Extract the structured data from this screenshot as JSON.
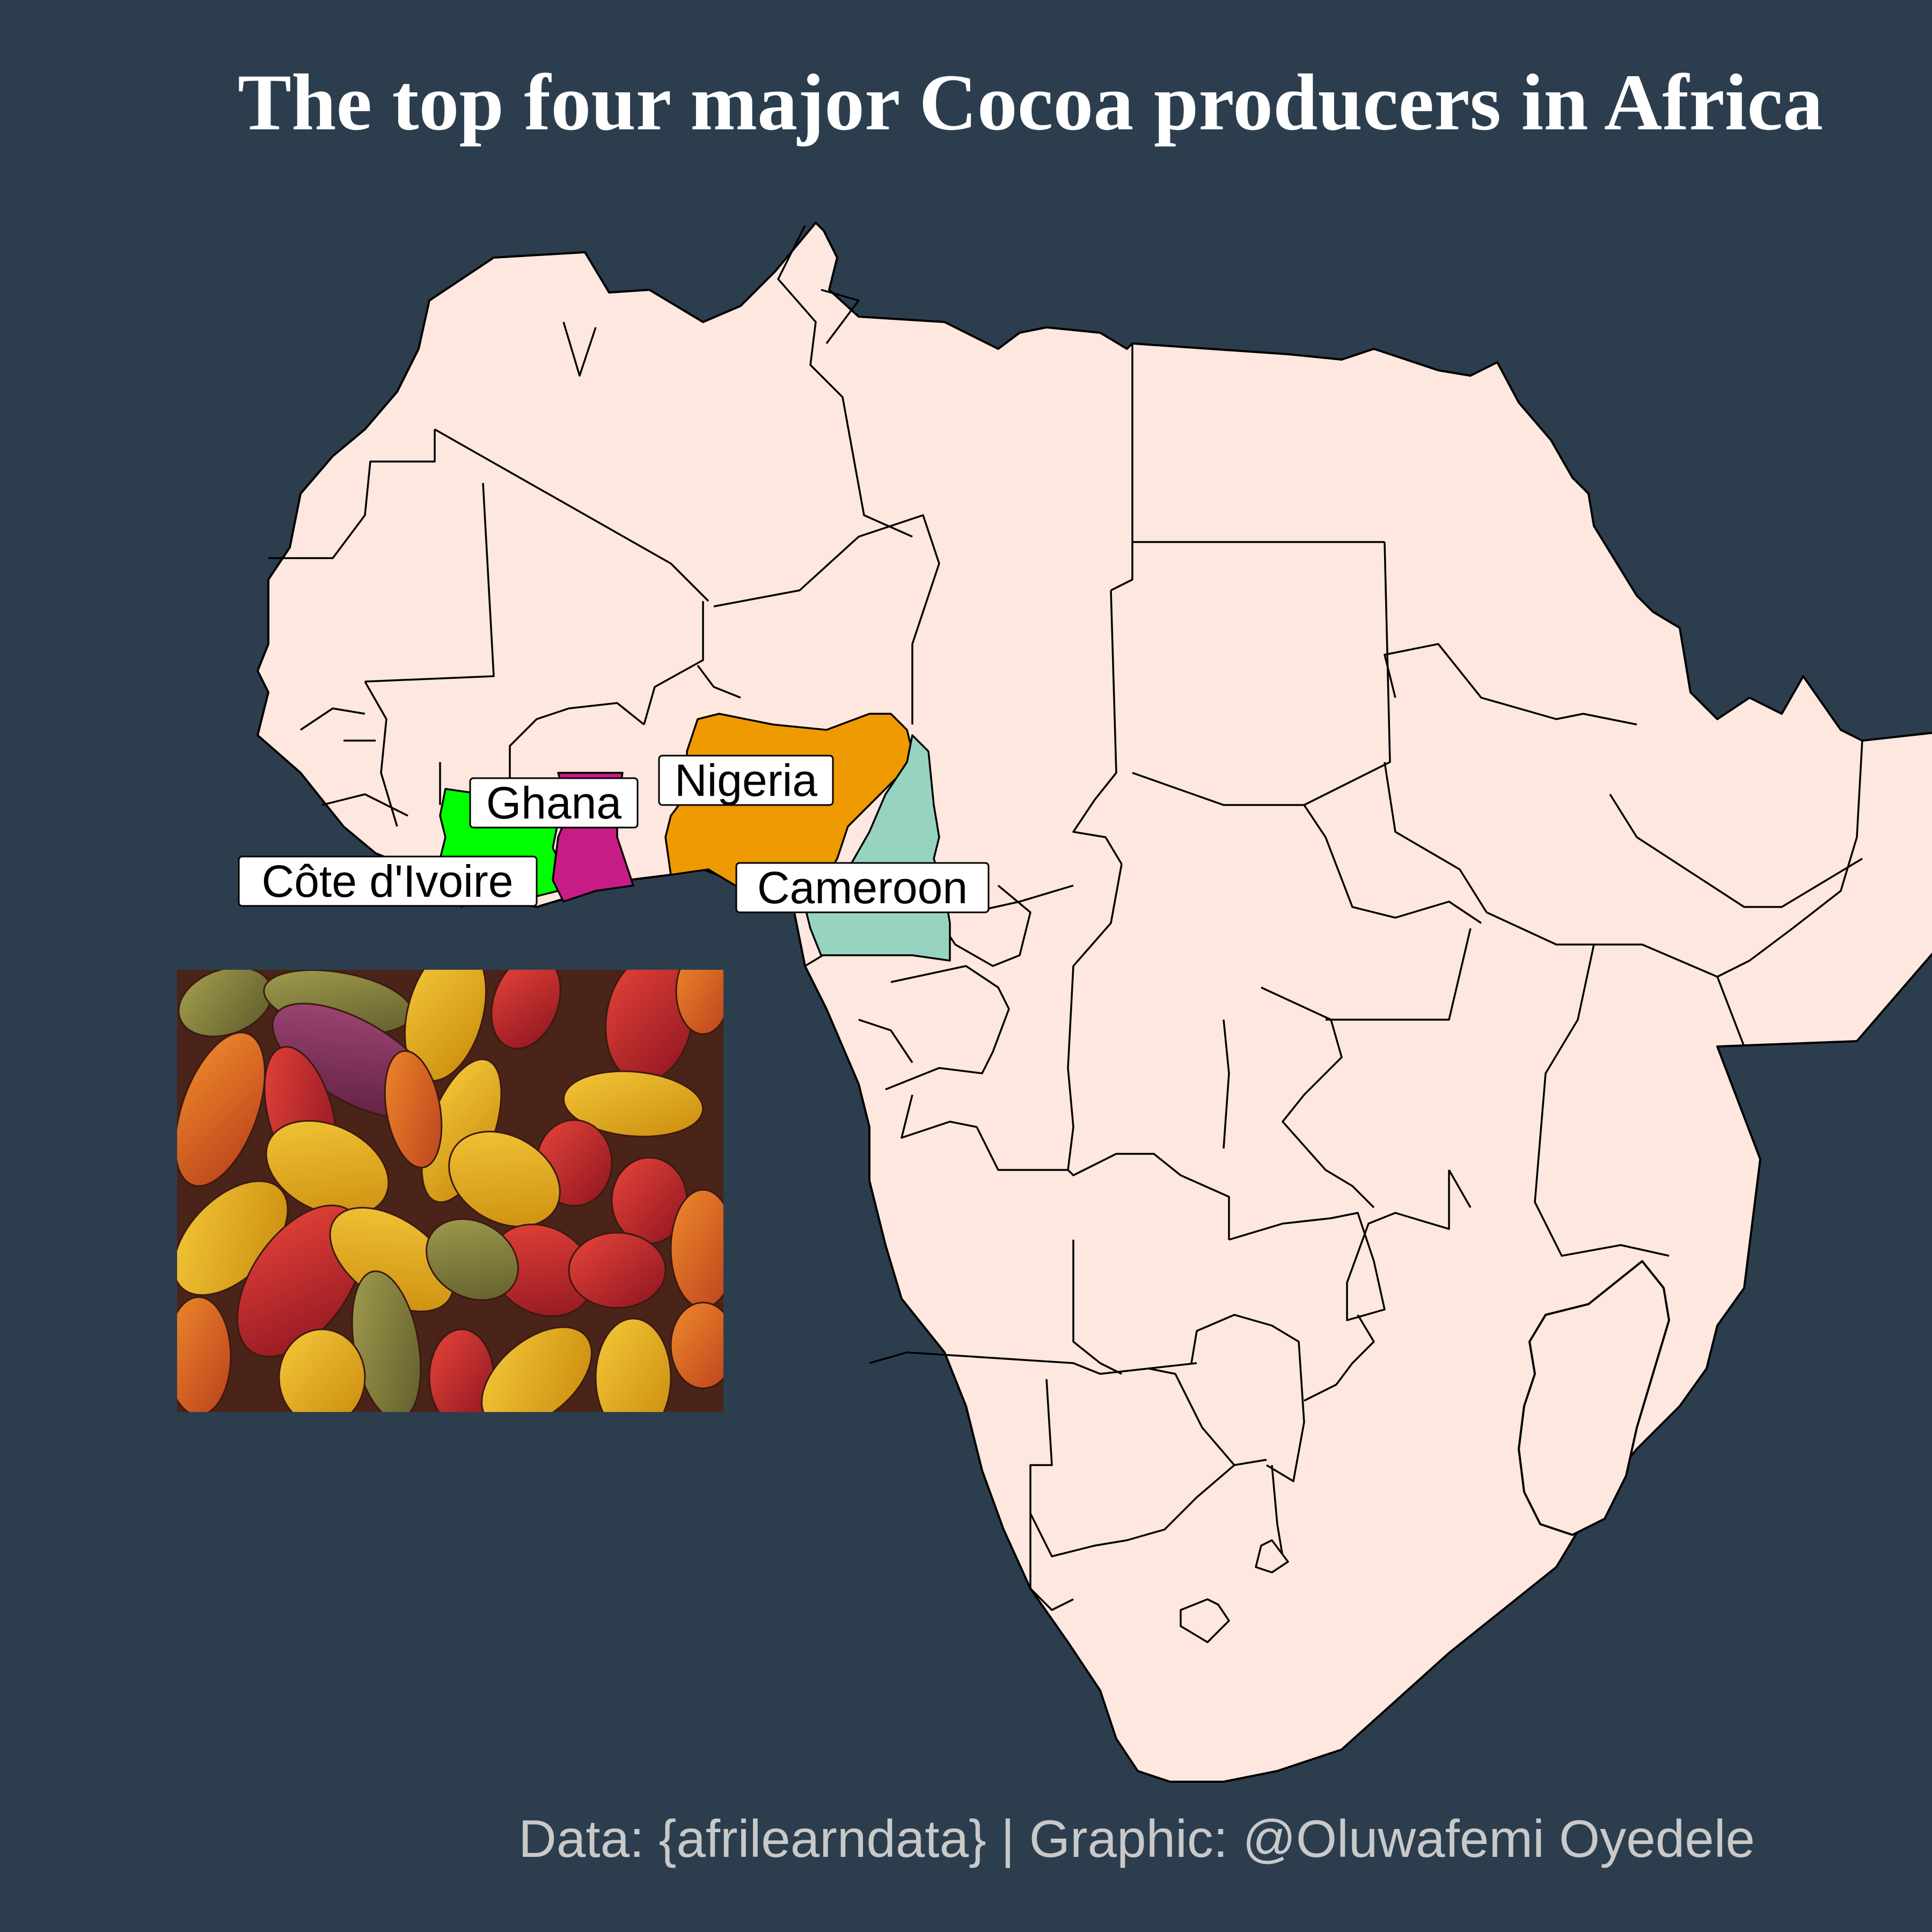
{
  "title": "The top four major Cocoa producers in Africa",
  "caption": "Data: {afrilearndata} | Graphic: @Oluwafemi Oyedele",
  "map": {
    "background_color": "#2c3e4e",
    "base_fill": "#fde7de",
    "border_color": "#000000",
    "highlighted_countries": [
      {
        "name": "Côte d'Ivoire",
        "fill": "#00ff00"
      },
      {
        "name": "Ghana",
        "fill": "#c71b85"
      },
      {
        "name": "Nigeria",
        "fill": "#ee9a00"
      },
      {
        "name": "Cameroon",
        "fill": "#96d3c1"
      }
    ]
  },
  "inset_image": {
    "subject": "cocoa-pods-photo"
  }
}
